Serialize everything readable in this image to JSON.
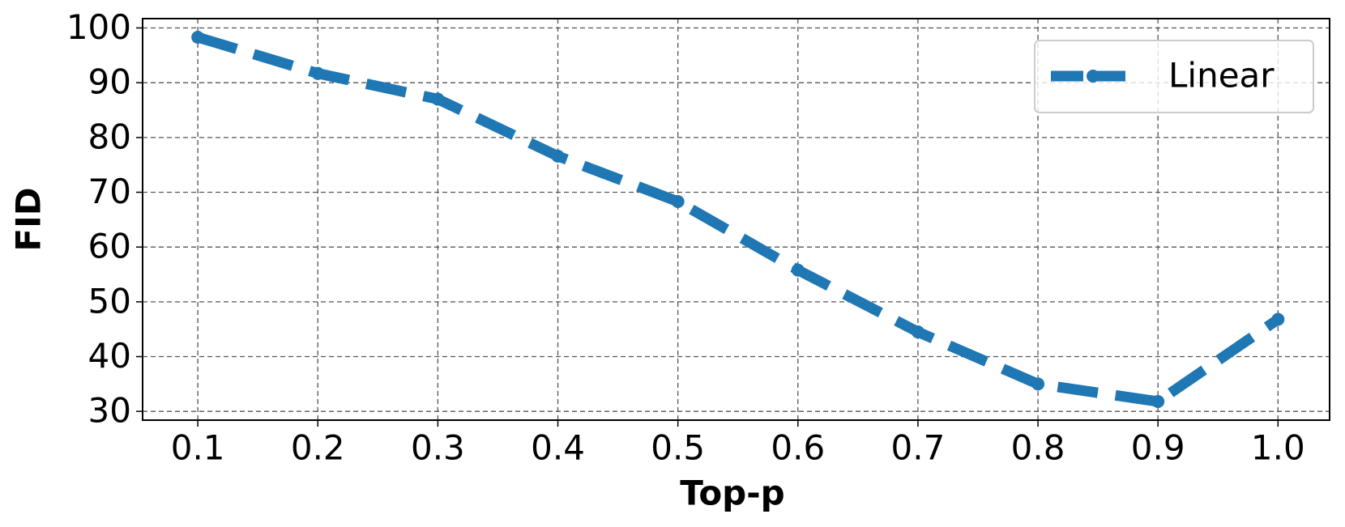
{
  "chart_data": {
    "type": "line",
    "x_label": "Top-p",
    "y_label": "FID",
    "x": [
      0.1,
      0.2,
      0.3,
      0.4,
      0.5,
      0.6,
      0.7,
      0.8,
      0.9,
      1.0
    ],
    "series": [
      {
        "name": "Linear",
        "color": "#1f77b4",
        "values": [
          98.3,
          91.7,
          87.0,
          76.6,
          68.3,
          55.8,
          44.5,
          35.0,
          31.8,
          46.8
        ]
      }
    ],
    "xlim": [
      0.054,
      1.043
    ],
    "xticks": [
      0.1,
      0.2,
      0.3,
      0.4,
      0.5,
      0.6,
      0.7,
      0.8,
      0.9,
      {
        "value": 1,
        "label": "1.0"
      }
    ],
    "ylim": [
      28.4,
      101.7
    ],
    "yticks": [
      30,
      40,
      50,
      60,
      70,
      80,
      90,
      100
    ],
    "grid": true,
    "legend": "upper right"
  }
}
